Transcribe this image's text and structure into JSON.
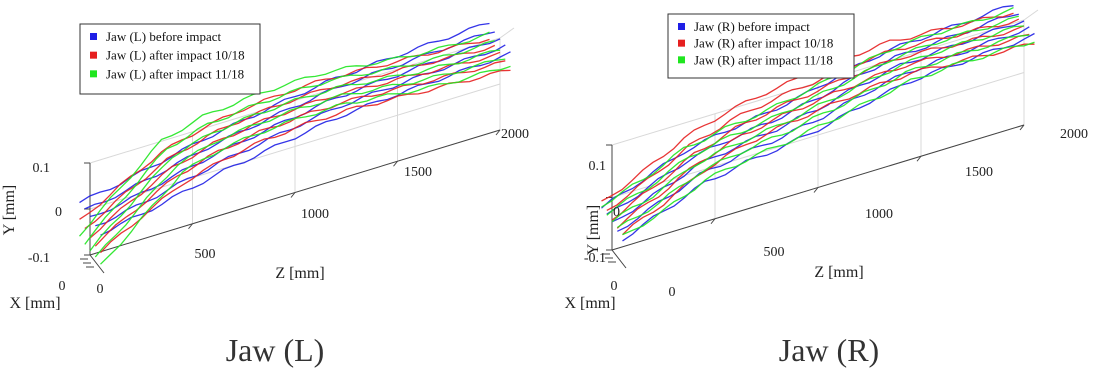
{
  "chart_data": [
    {
      "type": "line",
      "title": "Jaw (L)",
      "xlabel": "Z [mm]",
      "ylabel": "Y [mm]",
      "zlabel": "X [mm]",
      "xlim": [
        0,
        2000
      ],
      "ylim": [
        -0.1,
        0.1
      ],
      "x_ticks": [
        "500",
        "1000",
        "1500",
        "2000"
      ],
      "y_ticks": [
        "0.1",
        "0",
        "-0.1"
      ],
      "depth_ticks": [
        "0",
        "0"
      ],
      "grid": true,
      "legend_position": "top-left",
      "x": [
        0,
        200,
        400,
        600,
        800,
        1000,
        1200,
        1400,
        1600,
        1800,
        2000
      ],
      "series": [
        {
          "name": "Jaw (L) before impact",
          "color": "#1f1fe6",
          "values": [
            -0.02,
            -0.005,
            0.015,
            0.035,
            0.05,
            0.065,
            0.078,
            0.085,
            0.09,
            0.095,
            0.1
          ]
        },
        {
          "name": "Jaw (L) after impact 10/18",
          "color": "#e61f1f",
          "values": [
            -0.06,
            -0.01,
            0.035,
            0.06,
            0.075,
            0.082,
            0.085,
            0.08,
            0.075,
            0.07,
            0.065
          ]
        },
        {
          "name": "Jaw (L) after impact 11/18",
          "color": "#1fe61f",
          "values": [
            -0.09,
            -0.015,
            0.06,
            0.085,
            0.095,
            0.1,
            0.1,
            0.09,
            0.08,
            0.075,
            0.075
          ]
        }
      ]
    },
    {
      "type": "line",
      "title": "Jaw (R)",
      "xlabel": "Z [mm]",
      "ylabel": "Y [mm]",
      "zlabel": "X [mm]",
      "xlim": [
        0,
        2000
      ],
      "ylim": [
        -0.1,
        0.1
      ],
      "x_ticks": [
        "500",
        "1000",
        "1500",
        "2000"
      ],
      "y_ticks": [
        "0.1",
        "0",
        "-0.1"
      ],
      "depth_ticks": [
        "0",
        "0"
      ],
      "grid": true,
      "legend_position": "top-left",
      "x": [
        0,
        200,
        400,
        600,
        800,
        1000,
        1200,
        1400,
        1600,
        1800,
        2000
      ],
      "series": [
        {
          "name": "Jaw (R) before impact",
          "color": "#1f1fe6",
          "values": [
            -0.05,
            -0.02,
            0.01,
            0.025,
            0.035,
            0.05,
            0.07,
            0.085,
            0.09,
            0.095,
            0.1
          ]
        },
        {
          "name": "Jaw (R) after impact 10/18",
          "color": "#e61f1f",
          "values": [
            -0.04,
            -0.005,
            0.035,
            0.06,
            0.075,
            0.085,
            0.095,
            0.1,
            0.095,
            0.09,
            0.085
          ]
        },
        {
          "name": "Jaw (R) after impact 11/18",
          "color": "#1fe61f",
          "values": [
            -0.045,
            -0.02,
            0.015,
            0.03,
            0.04,
            0.055,
            0.07,
            0.085,
            0.09,
            0.09,
            0.09
          ]
        }
      ]
    }
  ]
}
